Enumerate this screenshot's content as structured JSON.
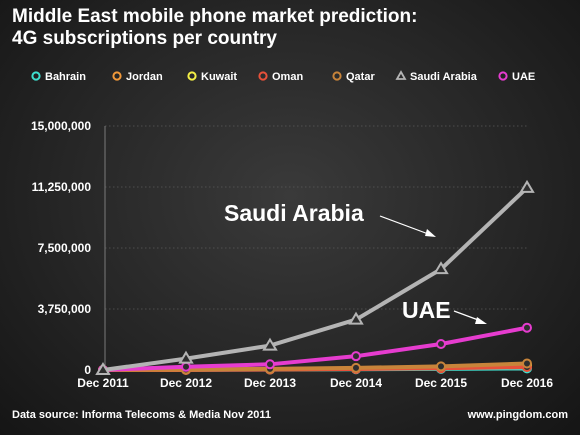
{
  "title_line1": "Middle East mobile phone market prediction:",
  "title_line2": "4G subscriptions per country",
  "source": "Data source: Informa Telecoms & Media Nov 2011",
  "website": "www.pingdom.com",
  "chart_data": {
    "type": "line",
    "x": [
      "Dec 2011",
      "Dec 2012",
      "Dec 2013",
      "Dec 2014",
      "Dec 2015",
      "Dec 2016"
    ],
    "ylim": [
      0,
      15000000
    ],
    "yticks": [
      0,
      3750000,
      7500000,
      11250000,
      15000000
    ],
    "ytick_labels": [
      "0",
      "3,750,000",
      "7,500,000",
      "11,250,000",
      "15,000,000"
    ],
    "grid": true,
    "legend_position": "top",
    "series": [
      {
        "name": "Bahrain",
        "color": "#3ee0d0",
        "marker": "circle",
        "values": [
          0,
          10000,
          25000,
          45000,
          70000,
          100000
        ]
      },
      {
        "name": "Jordan",
        "color": "#f2993a",
        "marker": "circle",
        "values": [
          0,
          15000,
          40000,
          80000,
          150000,
          280000
        ]
      },
      {
        "name": "Kuwait",
        "color": "#f5f046",
        "marker": "circle",
        "values": [
          0,
          20000,
          50000,
          100000,
          180000,
          300000
        ]
      },
      {
        "name": "Oman",
        "color": "#e8513a",
        "marker": "circle",
        "values": [
          0,
          10000,
          30000,
          60000,
          110000,
          180000
        ]
      },
      {
        "name": "Qatar",
        "color": "#c8843a",
        "marker": "circle",
        "values": [
          0,
          30000,
          70000,
          130000,
          220000,
          400000
        ]
      },
      {
        "name": "Saudi Arabia",
        "color": "#b4b4b4",
        "marker": "triangle",
        "values": [
          0,
          700000,
          1500000,
          3100000,
          6200000,
          11200000
        ]
      },
      {
        "name": "UAE",
        "color": "#e63ccf",
        "marker": "circle",
        "values": [
          0,
          200000,
          350000,
          850000,
          1600000,
          2600000
        ]
      }
    ],
    "annotations": [
      "Saudi Arabia",
      "UAE"
    ]
  }
}
